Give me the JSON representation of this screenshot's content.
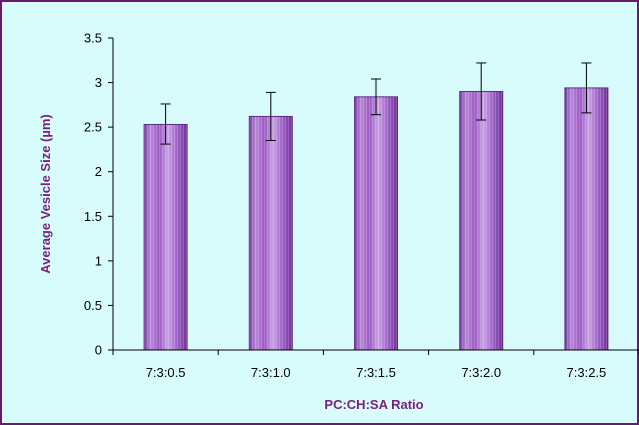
{
  "chart_data": {
    "type": "bar",
    "title": "",
    "xlabel": "PC:CH:SA Ratio",
    "ylabel": "Average Vesicle Size (µm)",
    "categories": [
      "7:3:0.5",
      "7:3:1.0",
      "7:3:1.5",
      "7:3:2.0",
      "7:3:2.5"
    ],
    "values": [
      2.53,
      2.62,
      2.84,
      2.9,
      2.94
    ],
    "error_bars": [
      {
        "low": 2.31,
        "high": 2.76
      },
      {
        "low": 2.35,
        "high": 2.89
      },
      {
        "low": 2.64,
        "high": 3.04
      },
      {
        "low": 2.58,
        "high": 3.22
      },
      {
        "low": 2.66,
        "high": 3.22
      }
    ],
    "ylim": [
      0,
      3.5
    ],
    "yticks": [
      "0",
      "0.5",
      "1",
      "1.5",
      "2",
      "2.5",
      "3",
      "3.5"
    ],
    "grid": false,
    "legend": "none",
    "colors": {
      "bar_fill": "#9b59c4",
      "bar_dark": "#6e2f96",
      "bar_light": "#d9b6ee",
      "background": "#d8fbfc",
      "frame": "#6b1a6b",
      "axis_title": "#7a1f7a"
    }
  }
}
